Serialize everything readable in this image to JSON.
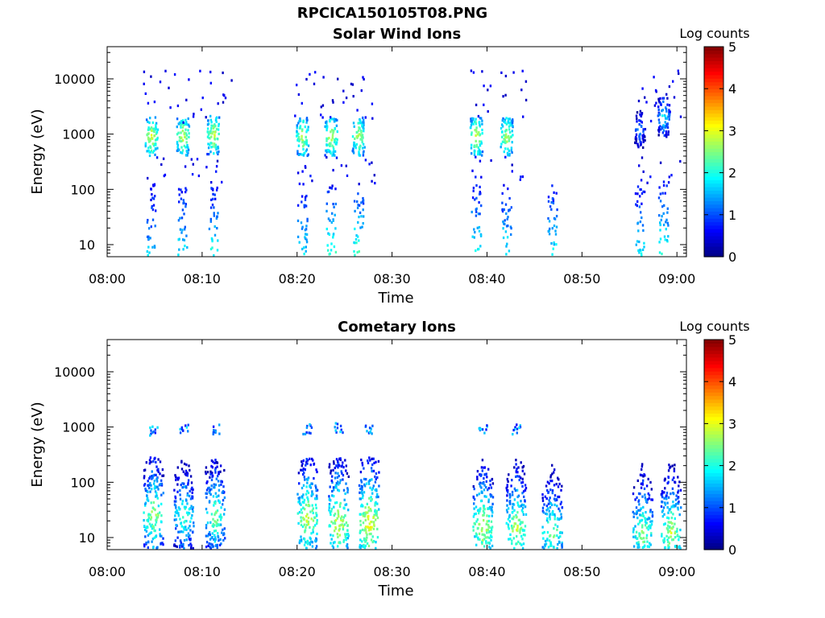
{
  "suptitle": "RPCICA150105T08.PNG",
  "chart_data": [
    {
      "type": "heatmap",
      "title": "Solar Wind Ions",
      "xlabel": "Time",
      "ylabel": "Energy (eV)",
      "x_ticks": [
        "08:00",
        "08:10",
        "08:20",
        "08:30",
        "08:40",
        "08:50",
        "09:00"
      ],
      "y_ticks": [
        "10",
        "100",
        "1000",
        "10000"
      ],
      "y_scale": "log",
      "ylim": [
        6,
        45000
      ],
      "xlim_minutes": [
        0,
        61
      ],
      "colorbar": {
        "label": "Log counts",
        "ticks": [
          "0",
          "1",
          "2",
          "3",
          "4",
          "5"
        ],
        "range": [
          0,
          5
        ],
        "colormap": "jet"
      },
      "bursts": [
        {
          "t": 4.6,
          "peak_E": 900,
          "peak_log": 3.0,
          "low_E_log": 1.6
        },
        {
          "t": 7.9,
          "peak_E": 900,
          "peak_log": 3.0,
          "low_E_log": 1.8
        },
        {
          "t": 11.1,
          "peak_E": 950,
          "peak_log": 3.0,
          "low_E_log": 2.0
        },
        {
          "t": 20.5,
          "peak_E": 900,
          "peak_log": 2.9,
          "low_E_log": 1.8
        },
        {
          "t": 23.5,
          "peak_E": 900,
          "peak_log": 3.0,
          "low_E_log": 2.2
        },
        {
          "t": 26.4,
          "peak_E": 900,
          "peak_log": 2.9,
          "low_E_log": 2.2
        },
        {
          "t": 38.8,
          "peak_E": 900,
          "peak_log": 3.0,
          "low_E_log": 2.0
        },
        {
          "t": 42.0,
          "peak_E": 900,
          "peak_log": 2.9,
          "low_E_log": 1.9
        },
        {
          "t": 46.8,
          "peak_E": null,
          "peak_log": 0,
          "low_E_log": 1.9
        },
        {
          "t": 56.0,
          "peak_E": 1200,
          "peak_log": 1.5,
          "low_E_log": 1.8
        },
        {
          "t": 58.5,
          "peak_E": 2000,
          "peak_log": 2.0,
          "low_E_log": 2.1
        }
      ]
    },
    {
      "type": "heatmap",
      "title": "Cometary Ions",
      "xlabel": "Time",
      "ylabel": "Energy (eV)",
      "x_ticks": [
        "08:00",
        "08:10",
        "08:20",
        "08:30",
        "08:40",
        "08:50",
        "09:00"
      ],
      "y_ticks": [
        "10",
        "100",
        "1000",
        "10000"
      ],
      "y_scale": "log",
      "ylim": [
        6,
        45000
      ],
      "xlim_minutes": [
        0,
        61
      ],
      "colorbar": {
        "label": "Log counts",
        "ticks": [
          "0",
          "1",
          "2",
          "3",
          "4",
          "5"
        ],
        "range": [
          0,
          5
        ],
        "colormap": "jet"
      },
      "bursts": [
        {
          "t": 4.8,
          "peak_E": 25,
          "peak_log": 2.7,
          "band_E": 850
        },
        {
          "t": 8.0,
          "peak_E": 25,
          "peak_log": 2.3,
          "band_E": 900
        },
        {
          "t": 11.3,
          "peak_E": 25,
          "peak_log": 2.5,
          "band_E": 900
        },
        {
          "t": 21.0,
          "peak_E": 22,
          "peak_log": 2.9,
          "band_E": 900
        },
        {
          "t": 24.3,
          "peak_E": 18,
          "peak_log": 3.0,
          "band_E": 950
        },
        {
          "t": 27.5,
          "peak_E": 18,
          "peak_log": 3.2,
          "band_E": 900
        },
        {
          "t": 39.5,
          "peak_E": 15,
          "peak_log": 2.9,
          "band_E": 900
        },
        {
          "t": 43.0,
          "peak_E": 15,
          "peak_log": 2.8,
          "band_E": 900
        },
        {
          "t": 46.8,
          "peak_E": 12,
          "peak_log": 2.6,
          "band_E": null
        },
        {
          "t": 56.3,
          "peak_E": 12,
          "peak_log": 2.6,
          "band_E": null
        },
        {
          "t": 59.3,
          "peak_E": 12,
          "peak_log": 2.8,
          "band_E": null
        }
      ]
    }
  ]
}
